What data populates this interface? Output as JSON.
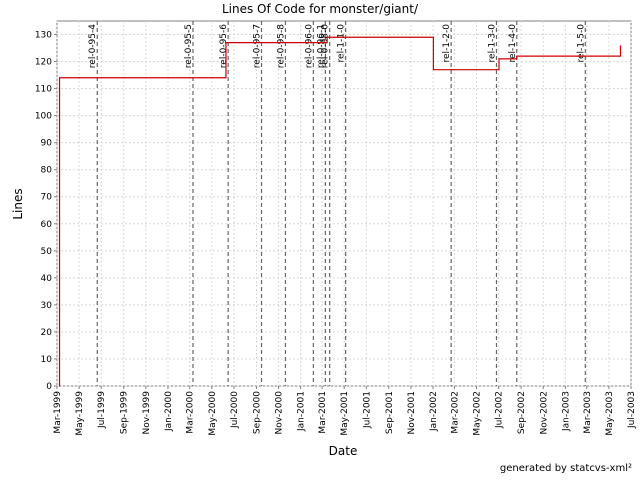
{
  "chart_data": {
    "type": "line",
    "title": "Lines Of Code for monster/giant/",
    "xlabel": "Date",
    "ylabel": "Lines",
    "ylim": [
      0,
      135
    ],
    "xlim": [
      "1999-03-01",
      "2003-07-01"
    ],
    "yticks": [
      0,
      10,
      20,
      30,
      40,
      50,
      60,
      70,
      80,
      90,
      100,
      110,
      120,
      130
    ],
    "xticks": [
      "Mar-1999",
      "May-1999",
      "Jul-1999",
      "Sep-1999",
      "Nov-1999",
      "Jan-2000",
      "Mar-2000",
      "May-2000",
      "Jul-2000",
      "Sep-2000",
      "Nov-2000",
      "Jan-2001",
      "Mar-2001",
      "May-2001",
      "Jul-2001",
      "Sep-2001",
      "Nov-2001",
      "Jan-2002",
      "Mar-2002",
      "May-2002",
      "Jul-2002",
      "Sep-2002",
      "Nov-2002",
      "Jan-2003",
      "Mar-2003",
      "May-2003",
      "Jul-2003"
    ],
    "grid": true,
    "series_color": "#cc0000",
    "marker_color": "#666666",
    "series": [
      {
        "step": true,
        "x": [
          "1999-03-07",
          "1999-03-08",
          "2000-06-08",
          "2000-06-09",
          "2001-03-01",
          "2001-03-15",
          "2002-01-01",
          "2002-01-02",
          "2002-07-01",
          "2002-07-02",
          "2002-08-15",
          "2002-08-20",
          "2003-06-01",
          "2003-06-02"
        ],
        "values": [
          0,
          114,
          114,
          127,
          127,
          129,
          129,
          117,
          117,
          121,
          121,
          122,
          122,
          126
        ]
      }
    ],
    "release_markers": [
      {
        "label": "rel-0-95-4",
        "date": "1999-06-20"
      },
      {
        "label": "rel-0-95-5",
        "date": "2000-03-10"
      },
      {
        "label": "rel-0-95-6",
        "date": "2000-06-15"
      },
      {
        "label": "rel-0-95-7",
        "date": "2000-09-15"
      },
      {
        "label": "rel-0-95-8",
        "date": "2000-11-20"
      },
      {
        "label": "rel-0-96-0",
        "date": "2001-02-05"
      },
      {
        "label": "rel-0-96-1",
        "date": "2001-03-10"
      },
      {
        "label": "rel-0-98-0",
        "date": "2001-03-22"
      },
      {
        "label": "rel-1-1-0",
        "date": "2001-05-05"
      },
      {
        "label": "rel-1-2-0",
        "date": "2002-02-20"
      },
      {
        "label": "rel-1-3-0",
        "date": "2002-06-25"
      },
      {
        "label": "rel-1-4-0",
        "date": "2002-08-20"
      },
      {
        "label": "rel-1-5-0",
        "date": "2003-02-25"
      }
    ]
  },
  "footer": "generated by statcvs-xml²"
}
